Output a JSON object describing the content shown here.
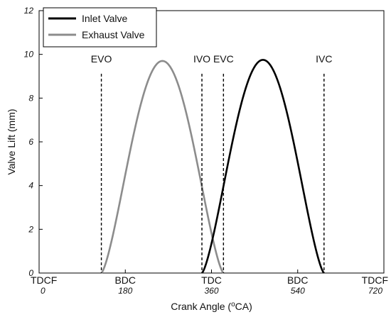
{
  "chart_data": {
    "type": "line",
    "xlabel_text": "Crank Angle (",
    "xlabel_sup": "o",
    "xlabel_unit": "CA)",
    "ylabel": "Valve Lift (mm)",
    "xlim": [
      0,
      720
    ],
    "ylim": [
      0,
      12
    ],
    "x_ticks": [
      0,
      180,
      360,
      540,
      720
    ],
    "y_ticks": [
      0,
      2,
      4,
      6,
      8,
      10,
      12
    ],
    "position_labels": [
      {
        "x": 0,
        "label": "TDCF"
      },
      {
        "x": 180,
        "label": "BDC"
      },
      {
        "x": 360,
        "label": "TDC"
      },
      {
        "x": 540,
        "label": "BDC"
      },
      {
        "x": 720,
        "label": "TDCF"
      }
    ],
    "events": [
      {
        "name": "EVO",
        "x": 130
      },
      {
        "name": "IVO",
        "x": 340
      },
      {
        "name": "EVC",
        "x": 385
      },
      {
        "name": "IVC",
        "x": 595
      }
    ],
    "series": [
      {
        "name": "Inlet Valve",
        "color": "#000000",
        "start": 340,
        "end": 595,
        "peak": 9.75
      },
      {
        "name": "Exhaust Valve",
        "color": "#8c8c8c",
        "start": 130,
        "end": 385,
        "peak": 9.7
      }
    ],
    "legend_position": "top-left",
    "grid": false
  }
}
